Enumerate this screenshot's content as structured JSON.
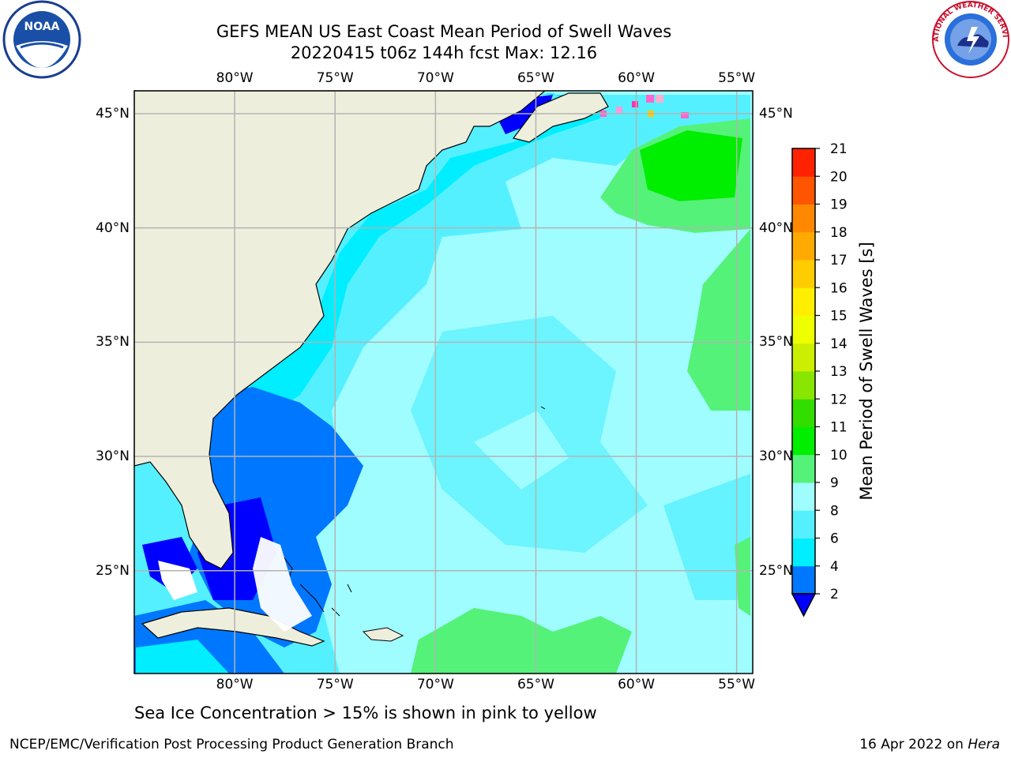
{
  "header": {
    "title_line1": "GEFS MEAN US East Coast Mean Period of Swell Waves",
    "title_line2": "20220415 t06z 144h fcst   Max: 12.16"
  },
  "logos": {
    "left": {
      "name": "noaa-logo",
      "text": "NOAA"
    },
    "right": {
      "name": "nws-logo",
      "text": "NATIONAL WEATHER SERVICE"
    }
  },
  "map": {
    "projection": "lat-lon",
    "lon_range": [
      -85,
      -54.2
    ],
    "lat_range": [
      20.5,
      46
    ],
    "lon_ticks": [
      "80°W",
      "75°W",
      "70°W",
      "65°W",
      "60°W",
      "55°W"
    ],
    "lat_ticks": [
      "45°N",
      "40°N",
      "35°N",
      "30°N",
      "25°N"
    ],
    "gridlines": true,
    "land_color": "#eeeedd",
    "ocean_palette_note": "swell period shaded by colorbar"
  },
  "colorbar": {
    "label": "Mean Period of Swell Waves [s]",
    "ticks": [
      "2",
      "4",
      "6",
      "8",
      "9",
      "10",
      "11",
      "12",
      "13",
      "14",
      "15",
      "16",
      "17",
      "18",
      "19",
      "20",
      "21"
    ],
    "colors": [
      "#0000ff",
      "#0077ff",
      "#00eeff",
      "#55f0ff",
      "#a0fdff",
      "#55f27a",
      "#00ee00",
      "#33dd00",
      "#88e600",
      "#ccee00",
      "#eeff00",
      "#ffee00",
      "#ffcc00",
      "#ffaa00",
      "#ff8800",
      "#ff5500",
      "#ff2200",
      "#ff0000"
    ],
    "extend_min_color": "#0000ff"
  },
  "footer": {
    "note": "Sea Ice Concentration > 15% is shown in pink to yellow",
    "credit_left": "NCEP/EMC/Verification Post Processing Product Generation Branch",
    "credit_right_prefix": "16 Apr 2022 on ",
    "credit_right_host": "Hera"
  }
}
